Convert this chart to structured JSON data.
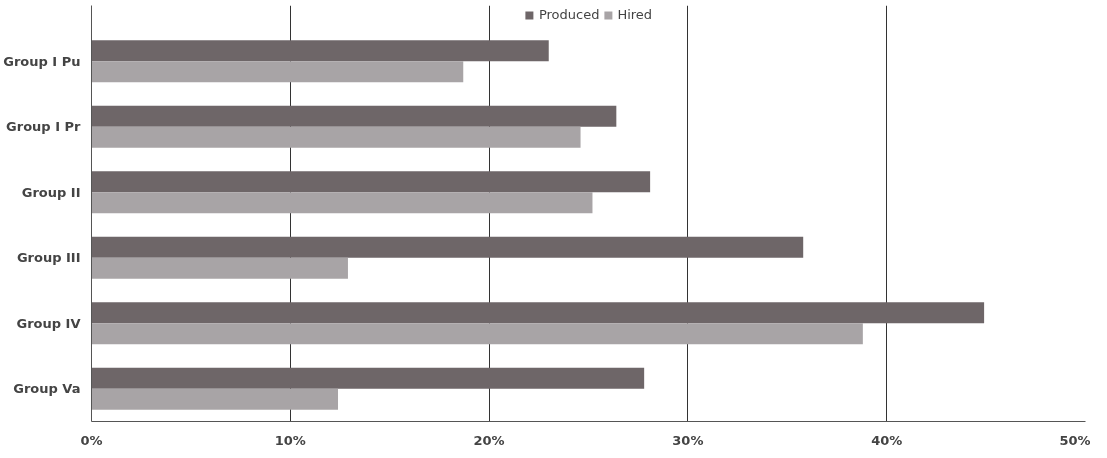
{
  "chart_data": {
    "type": "bar",
    "orientation": "horizontal",
    "categories": [
      "Group I Pu",
      "Group I Pr",
      "Group II",
      "Group III",
      "Group IV",
      "Group Va"
    ],
    "series": [
      {
        "name": "Produced",
        "color": "#6e6668",
        "values": [
          23.0,
          26.4,
          28.1,
          35.8,
          44.9,
          27.8
        ]
      },
      {
        "name": "Hired",
        "color": "#a8a4a6",
        "values": [
          18.7,
          24.6,
          25.2,
          12.9,
          38.8,
          12.4
        ]
      }
    ],
    "xlim": [
      0,
      50
    ],
    "xticks": [
      {
        "value": 0,
        "label": "0%"
      },
      {
        "value": 10,
        "label": "10%"
      },
      {
        "value": 20,
        "label": "20%"
      },
      {
        "value": 30,
        "label": "30%"
      },
      {
        "value": 40,
        "label": "40%"
      },
      {
        "value": 50,
        "label": "50%"
      }
    ],
    "grid": "x",
    "legend": "top"
  }
}
